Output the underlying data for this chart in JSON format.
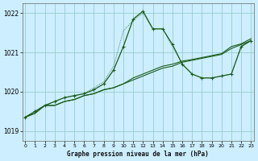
{
  "title": "Graphe pression niveau de la mer (hPa)",
  "background_color": "#cceeff",
  "grid_color": "#99cccc",
  "line_color": "#1a5c1a",
  "xlim": [
    -0.3,
    23.3
  ],
  "ylim": [
    1018.75,
    1022.25
  ],
  "yticks": [
    1019,
    1020,
    1021,
    1022
  ],
  "xticks": [
    0,
    1,
    2,
    3,
    4,
    5,
    6,
    7,
    8,
    9,
    10,
    11,
    12,
    13,
    14,
    15,
    16,
    17,
    18,
    19,
    20,
    21,
    22,
    23
  ],
  "hours": [
    0,
    1,
    2,
    3,
    4,
    5,
    6,
    7,
    8,
    9,
    10,
    11,
    12,
    13,
    14,
    15,
    16,
    17,
    18,
    19,
    20,
    21,
    22,
    23
  ],
  "series_straight1": [
    1019.35,
    1019.45,
    1019.65,
    1019.65,
    1019.75,
    1019.8,
    1019.9,
    1019.95,
    1020.05,
    1020.1,
    1020.2,
    1020.3,
    1020.4,
    1020.5,
    1020.6,
    1020.65,
    1020.75,
    1020.8,
    1020.85,
    1020.9,
    1020.95,
    1021.1,
    1021.2,
    1021.3
  ],
  "series_straight2": [
    1019.35,
    1019.45,
    1019.65,
    1019.65,
    1019.75,
    1019.8,
    1019.9,
    1019.95,
    1020.05,
    1020.1,
    1020.2,
    1020.35,
    1020.45,
    1020.55,
    1020.65,
    1020.7,
    1020.78,
    1020.82,
    1020.87,
    1020.92,
    1020.97,
    1021.15,
    1021.22,
    1021.35
  ],
  "series_peaked_markers": [
    1019.35,
    1019.5,
    1019.65,
    1019.75,
    1019.85,
    1019.9,
    1019.95,
    1020.05,
    1020.2,
    1020.55,
    1021.15,
    1021.85,
    1022.05,
    1021.6,
    1021.6,
    1021.2,
    1020.7,
    1020.45,
    1020.35,
    1020.35,
    1020.4,
    1020.45,
    1021.15,
    1021.3
  ],
  "series_thin_peaked": [
    1019.35,
    1019.5,
    1019.65,
    1019.75,
    1019.85,
    1019.9,
    1019.95,
    1020.1,
    1020.25,
    1020.65,
    1021.55,
    1021.82,
    1022.0,
    1021.6,
    1021.6,
    1021.15,
    1020.7,
    1020.45,
    1020.35,
    1020.35,
    1020.4,
    1020.45,
    1021.15,
    1021.3
  ]
}
